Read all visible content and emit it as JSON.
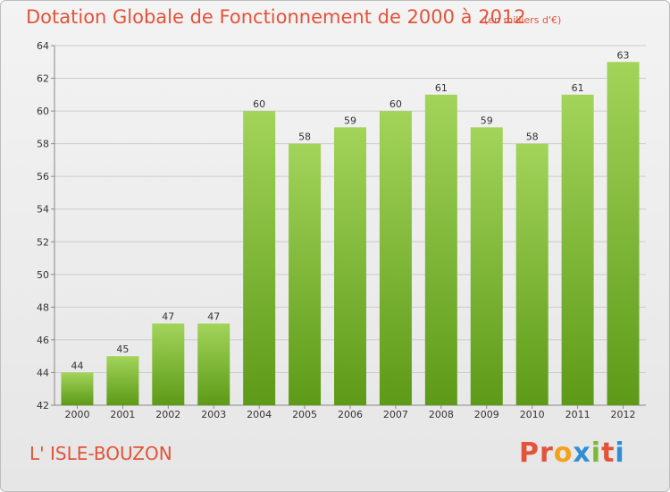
{
  "title": "Dotation Globale de Fonctionnement de 2000 à 2012",
  "subtitle": "(en milliers d'€)",
  "commune": "L' ISLE-BOUZON",
  "logo": {
    "text": "Proxiti",
    "letter_colors": [
      "#e2533a",
      "#e2533a",
      "#f3a21c",
      "#2f8fd6",
      "#7ab934",
      "#e2533a",
      "#2f8fd6"
    ]
  },
  "colors": {
    "title": "#e2533a",
    "bar_top": "#a2d45a",
    "bar_bottom": "#5d9a17",
    "grid": "#cccccc",
    "axis": "#888888"
  },
  "chart_data": {
    "type": "bar",
    "categories": [
      "2000",
      "2001",
      "2002",
      "2003",
      "2004",
      "2005",
      "2006",
      "2007",
      "2008",
      "2009",
      "2010",
      "2011",
      "2012"
    ],
    "values": [
      44,
      45,
      47,
      47,
      60,
      58,
      59,
      60,
      61,
      59,
      58,
      61,
      63
    ],
    "title": "Dotation Globale de Fonctionnement de 2000 à 2012",
    "subtitle": "(en milliers d'€)",
    "ylim": [
      42,
      64
    ],
    "yticks": [
      42,
      44,
      46,
      48,
      50,
      52,
      54,
      56,
      58,
      60,
      62,
      64
    ],
    "grid": true
  }
}
